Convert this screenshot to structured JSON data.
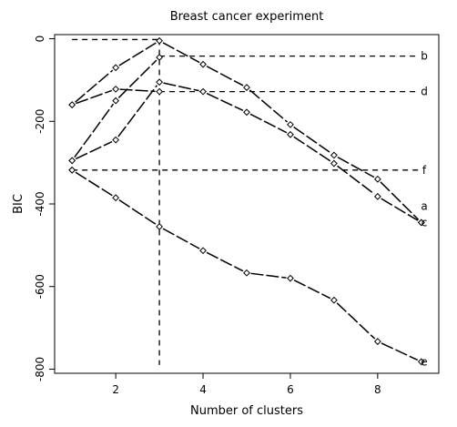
{
  "chart_data": {
    "type": "line",
    "title": "Breast cancer experiment",
    "xlabel": "Number of clusters",
    "ylabel": "BIC",
    "xlim": [
      0.6,
      9.4
    ],
    "ylim": [
      -810,
      10
    ],
    "xticks": [
      2,
      4,
      6,
      8
    ],
    "yticks": [
      0,
      -200,
      -400,
      -600,
      -800
    ],
    "xtick_labels": [
      "2",
      "4",
      "6",
      "8"
    ],
    "ytick_labels": [
      "0",
      "-200",
      "-400",
      "-600",
      "-800"
    ],
    "grid": false,
    "legend": "none",
    "x": [
      1,
      2,
      3,
      4,
      5,
      6,
      7,
      8,
      9
    ],
    "series": [
      {
        "name": "a",
        "values": [
          -160,
          -70,
          -5,
          -62,
          -118,
          -208,
          -282,
          -340,
          -445
        ]
      },
      {
        "name": "b",
        "values": [
          -295,
          -150,
          -45,
          null,
          null,
          null,
          null,
          null,
          null
        ]
      },
      {
        "name": "c",
        "values": [
          -295,
          -245,
          -105,
          -128,
          -178,
          -232,
          -302,
          -382,
          -445
        ]
      },
      {
        "name": "d",
        "values": [
          -160,
          -122,
          -128,
          null,
          null,
          null,
          null,
          null,
          null
        ]
      },
      {
        "name": "e",
        "values": [
          -318,
          -385,
          -455,
          -513,
          -567,
          -580,
          -633,
          -733,
          -782
        ]
      },
      {
        "name": "f",
        "values": [
          -318,
          null,
          null,
          null,
          null,
          null,
          null,
          null,
          null
        ]
      }
    ],
    "reference_lines": [
      {
        "label": "b",
        "y": -42,
        "x_start": 3
      },
      {
        "label": "d",
        "y": -128,
        "x_start": 3
      },
      {
        "label": "f",
        "y": -318,
        "x_start": 1
      },
      {
        "label": "",
        "y": -2,
        "x_start": 1,
        "x_end": 3
      }
    ],
    "vertical_line": {
      "x": 3,
      "y_top": -2,
      "y_bottom": -790
    },
    "end_labels": [
      {
        "text": "b",
        "y": -42
      },
      {
        "text": "d",
        "y": -128
      },
      {
        "text": "f",
        "y": -318
      },
      {
        "text": "a",
        "y": -405
      },
      {
        "text": "c",
        "y": -445
      },
      {
        "text": "e",
        "y": -782
      }
    ]
  }
}
